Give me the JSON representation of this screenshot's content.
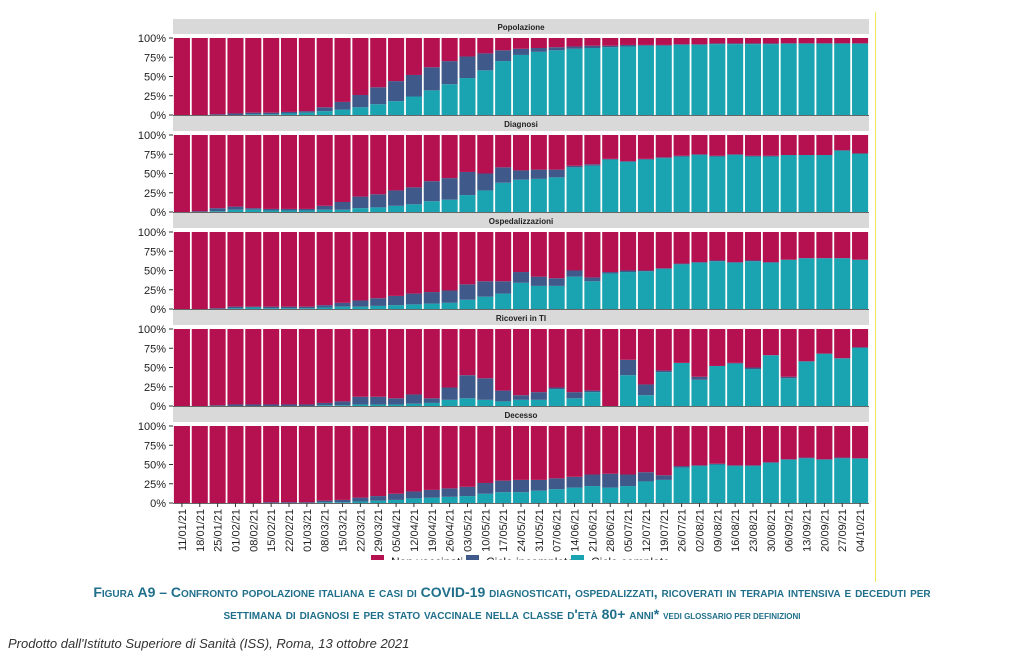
{
  "colors": {
    "non_vaccinati": "#b5104f",
    "ciclo_incompleto": "#3f5a8a",
    "ciclo_completo": "#1aa3b0",
    "strip": "#d9d9d9",
    "caption": "#1f6f8b"
  },
  "chart_data": {
    "type": "bar",
    "stacked": true,
    "facet": "panels",
    "categories": [
      "11/01/21",
      "18/01/21",
      "25/01/21",
      "01/02/21",
      "08/02/21",
      "15/02/21",
      "22/02/21",
      "01/03/21",
      "08/03/21",
      "15/03/21",
      "22/03/21",
      "29/03/21",
      "05/04/21",
      "12/04/21",
      "19/04/21",
      "26/04/21",
      "03/05/21",
      "10/05/21",
      "17/05/21",
      "24/05/21",
      "31/05/21",
      "07/06/21",
      "14/06/21",
      "21/06/21",
      "28/06/21",
      "05/07/21",
      "12/07/21",
      "19/07/21",
      "26/07/21",
      "02/08/21",
      "09/08/21",
      "16/08/21",
      "23/08/21",
      "30/08/21",
      "06/09/21",
      "13/09/21",
      "20/09/21",
      "27/09/21",
      "04/10/21"
    ],
    "yticks": [
      "0%",
      "25%",
      "50%",
      "75%",
      "100%"
    ],
    "ylim": [
      0,
      100
    ],
    "legend_position": "bottom",
    "legend": [
      "Non vaccinati",
      "Ciclo incompleto",
      "Ciclo completo"
    ],
    "panels": [
      {
        "title": "Popolazione",
        "ciclo_completo": [
          0,
          0,
          0,
          0,
          1,
          1,
          2,
          3,
          5,
          7,
          10,
          14,
          18,
          24,
          32,
          40,
          48,
          58,
          70,
          78,
          82,
          84,
          86,
          87,
          88,
          89,
          90,
          90,
          91,
          91,
          92,
          92,
          92,
          92,
          93,
          93,
          93,
          93,
          93
        ],
        "ciclo_incompleto": [
          0,
          0,
          1,
          2,
          2,
          2,
          2,
          2,
          5,
          10,
          16,
          22,
          26,
          28,
          30,
          30,
          28,
          22,
          14,
          8,
          5,
          4,
          3,
          3,
          2,
          2,
          1,
          1,
          1,
          1,
          1,
          1,
          1,
          1,
          0,
          0,
          0,
          0,
          0
        ]
      },
      {
        "title": "Diagnosi",
        "ciclo_completo": [
          0,
          0,
          1,
          3,
          3,
          2,
          2,
          2,
          3,
          3,
          5,
          6,
          8,
          10,
          14,
          16,
          22,
          28,
          38,
          42,
          43,
          45,
          58,
          60,
          68,
          65,
          68,
          70,
          72,
          74,
          72,
          74,
          72,
          72,
          74,
          74,
          74,
          80,
          76
        ],
        "ciclo_incompleto": [
          0,
          1,
          4,
          4,
          2,
          2,
          2,
          2,
          5,
          10,
          15,
          17,
          20,
          22,
          26,
          28,
          30,
          22,
          20,
          12,
          12,
          10,
          2,
          2,
          1,
          1,
          1,
          1,
          1,
          1,
          1,
          1,
          1,
          1,
          0,
          0,
          0,
          0,
          0
        ]
      },
      {
        "title": "Ospedalizzazioni",
        "ciclo_completo": [
          0,
          0,
          0,
          1,
          2,
          1,
          1,
          1,
          2,
          3,
          3,
          4,
          5,
          6,
          7,
          8,
          12,
          16,
          20,
          34,
          30,
          30,
          42,
          36,
          46,
          48,
          49,
          52,
          58,
          60,
          62,
          60,
          62,
          60,
          64,
          66,
          66,
          66,
          64
        ],
        "ciclo_incompleto": [
          0,
          0,
          1,
          2,
          1,
          2,
          2,
          2,
          3,
          5,
          8,
          10,
          12,
          14,
          15,
          16,
          20,
          20,
          16,
          14,
          12,
          10,
          8,
          5,
          2,
          2,
          1,
          1,
          1,
          1,
          1,
          1,
          1,
          1,
          0,
          0,
          0,
          0,
          0
        ]
      },
      {
        "title": "Ricoveri in TI",
        "ciclo_completo": [
          0,
          0,
          0,
          0,
          0,
          0,
          0,
          0,
          1,
          1,
          2,
          2,
          2,
          3,
          4,
          8,
          10,
          8,
          6,
          8,
          8,
          22,
          10,
          18,
          0,
          40,
          14,
          44,
          56,
          34,
          52,
          55,
          48,
          66,
          36,
          58,
          68,
          62,
          76
        ],
        "ciclo_incompleto": [
          0,
          0,
          1,
          2,
          2,
          2,
          2,
          2,
          3,
          5,
          10,
          10,
          8,
          12,
          6,
          16,
          30,
          28,
          14,
          6,
          10,
          2,
          8,
          2,
          0,
          20,
          14,
          2,
          0,
          4,
          0,
          1,
          2,
          0,
          2,
          0,
          0,
          0,
          0
        ]
      },
      {
        "title": "Decesso",
        "ciclo_completo": [
          0,
          0,
          0,
          0,
          0,
          0,
          0,
          0,
          1,
          1,
          2,
          3,
          4,
          6,
          7,
          8,
          9,
          12,
          14,
          14,
          16,
          18,
          20,
          22,
          20,
          22,
          28,
          30,
          46,
          48,
          50,
          48,
          48,
          52,
          56,
          58,
          56,
          58,
          58
        ],
        "ciclo_incompleto": [
          0,
          0,
          0,
          0,
          0,
          1,
          1,
          1,
          2,
          3,
          5,
          6,
          8,
          9,
          10,
          11,
          12,
          14,
          15,
          16,
          14,
          14,
          14,
          15,
          18,
          15,
          12,
          6,
          2,
          1,
          1,
          1,
          1,
          1,
          1,
          1,
          1,
          1,
          0
        ]
      }
    ]
  },
  "caption": {
    "line1": "Figura A9 – Confronto popolazione italiana e casi di COVID-19 diagnosticati, ospedalizzati, ricoverati in terapia intensiva e deceduti per",
    "line2": "settimana di diagnosi e per stato vaccinale nella classe d'età 80+ anni*",
    "note": "vedi glossario per definizioni"
  },
  "footer": "Prodotto dall'Istituto Superiore di Sanità (ISS), Roma, 13 ottobre 2021"
}
